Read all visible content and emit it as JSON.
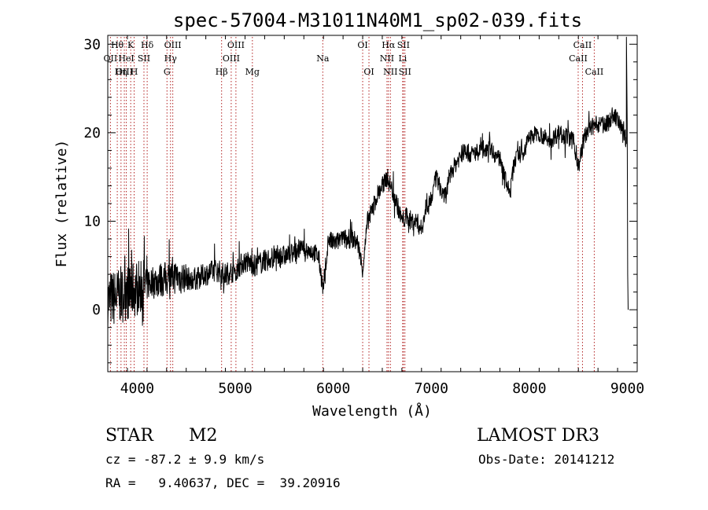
{
  "chart_data": {
    "type": "line",
    "title": "spec-57004-M31011N40M1_sp02-039.fits",
    "xlabel": "Wavelength (Å)",
    "ylabel": "Flux (relative)",
    "xlim": [
      3700,
      9100
    ],
    "ylim": [
      -7,
      31
    ],
    "x_ticks": [
      "4000",
      "5000",
      "6000",
      "7000",
      "8000",
      "9000"
    ],
    "y_ticks": [
      "0",
      "10",
      "20",
      "30"
    ],
    "x_tick_values": [
      4000,
      5000,
      6000,
      7000,
      8000,
      9000
    ],
    "y_tick_values": [
      0,
      10,
      20,
      30
    ],
    "line_color": "#000000",
    "marker_color": "#b22222",
    "spectral_lines": [
      {
        "label": "Hθ",
        "wavelength": 3797,
        "row": 0
      },
      {
        "label": "OII",
        "wavelength": 3727,
        "row": 1
      },
      {
        "label": "OIII",
        "wavelength": 3869,
        "row": 2
      },
      {
        "label": "K",
        "wavelength": 3934,
        "row": 0
      },
      {
        "label": "HeI",
        "wavelength": 3889,
        "row": 1
      },
      {
        "label": "Hη",
        "wavelength": 3835,
        "row": 2
      },
      {
        "label": "SII",
        "wavelength": 4069,
        "row": 1
      },
      {
        "label": "H",
        "wavelength": 3969,
        "row": 2
      },
      {
        "label": "Hδ",
        "wavelength": 4102,
        "row": 0
      },
      {
        "label": "OIII",
        "wavelength": 4363,
        "row": 0
      },
      {
        "label": "Hγ",
        "wavelength": 4340,
        "row": 1
      },
      {
        "label": "G",
        "wavelength": 4304,
        "row": 2
      },
      {
        "label": "Hβ",
        "wavelength": 4861,
        "row": 2
      },
      {
        "label": "OIII",
        "wavelength": 5007,
        "row": 0
      },
      {
        "label": "OIII",
        "wavelength": 4959,
        "row": 1
      },
      {
        "label": "Mg",
        "wavelength": 5175,
        "row": 2
      },
      {
        "label": "Na",
        "wavelength": 5893,
        "row": 1
      },
      {
        "label": "OI",
        "wavelength": 6300,
        "row": 0
      },
      {
        "label": "OI",
        "wavelength": 6364,
        "row": 2
      },
      {
        "label": "Hα",
        "wavelength": 6563,
        "row": 0
      },
      {
        "label": "SII",
        "wavelength": 6716,
        "row": 0
      },
      {
        "label": "NII",
        "wavelength": 6548,
        "row": 1
      },
      {
        "label": "Li",
        "wavelength": 6708,
        "row": 1
      },
      {
        "label": "NII",
        "wavelength": 6583,
        "row": 2
      },
      {
        "label": "SII",
        "wavelength": 6731,
        "row": 2
      },
      {
        "label": "CaII",
        "wavelength": 8542,
        "row": 0
      },
      {
        "label": "CaII",
        "wavelength": 8498,
        "row": 1
      },
      {
        "label": "CaII",
        "wavelength": 8662,
        "row": 2
      }
    ],
    "spectrum": {
      "x": [
        3700,
        3800,
        3900,
        4000,
        4100,
        4200,
        4300,
        4400,
        4500,
        4600,
        4700,
        4800,
        4900,
        5000,
        5100,
        5200,
        5300,
        5400,
        5500,
        5600,
        5700,
        5800,
        5850,
        5900,
        5950,
        6000,
        6100,
        6150,
        6200,
        6250,
        6300,
        6350,
        6400,
        6450,
        6500,
        6550,
        6600,
        6650,
        6700,
        6750,
        6800,
        6850,
        6900,
        6950,
        7000,
        7050,
        7100,
        7150,
        7200,
        7300,
        7350,
        7400,
        7500,
        7600,
        7650,
        7700,
        7750,
        7800,
        7850,
        7900,
        7950,
        8000,
        8100,
        8200,
        8300,
        8400,
        8450,
        8500,
        8550,
        8600,
        8700,
        8800,
        8850,
        8900,
        8950,
        9000
      ],
      "y": [
        1.0,
        1.5,
        2.0,
        2.5,
        3.0,
        3.3,
        3.5,
        3.8,
        3.5,
        3.5,
        4.0,
        4.5,
        4.0,
        4.5,
        5.5,
        5.0,
        5.5,
        6.0,
        6.0,
        6.5,
        7.0,
        6.5,
        6.0,
        2.0,
        8.0,
        7.5,
        8.0,
        8.0,
        8.0,
        7.5,
        4.5,
        10.0,
        11.5,
        13.0,
        14.0,
        15.0,
        13.5,
        12.0,
        10.0,
        10.5,
        10.0,
        10.0,
        9.0,
        12.0,
        12.5,
        15.0,
        13.5,
        13.0,
        15.5,
        17.5,
        18.0,
        17.5,
        18.0,
        18.5,
        17.5,
        17.0,
        15.0,
        13.0,
        17.0,
        17.5,
        18.0,
        19.5,
        20.0,
        19.0,
        20.0,
        19.5,
        19.0,
        16.0,
        19.0,
        20.5,
        21.0,
        21.0,
        22.0,
        21.5,
        20.0,
        19.0
      ]
    }
  },
  "info": {
    "object_class": "STAR",
    "subclass": "M2",
    "survey": "LAMOST DR3",
    "redshift_text": "cz = -87.2 ± 9.9 km/s",
    "obs_date_text": "Obs-Date: 20141212",
    "coords_text": "RA =   9.40637, DEC =  39.20916"
  }
}
